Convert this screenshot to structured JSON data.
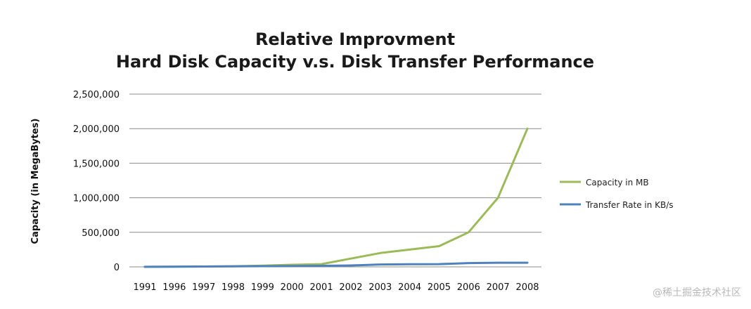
{
  "chart_data": {
    "type": "line",
    "title": "Relative Improvment",
    "subtitle": "Hard Disk Capacity v.s. Disk Transfer Performance",
    "xlabel": "",
    "ylabel": "Capacity (in MegaBytes)",
    "categories": [
      "1991",
      "1996",
      "1997",
      "1998",
      "1999",
      "2000",
      "2001",
      "2002",
      "2003",
      "2004",
      "2005",
      "2006",
      "2007",
      "2008"
    ],
    "ylim": [
      0,
      2500000
    ],
    "yticks": [
      0,
      500000,
      1000000,
      1500000,
      2000000,
      2500000
    ],
    "ytick_labels": [
      "0",
      "500,000",
      "1,000,000",
      "1,500,000",
      "2,000,000",
      "2,500,000"
    ],
    "grid": true,
    "legend": "right",
    "series": [
      {
        "name": "Capacity in MB",
        "color": "#9bbb59",
        "values": [
          100,
          2000,
          5000,
          9000,
          18000,
          30000,
          40000,
          120000,
          200000,
          250000,
          300000,
          500000,
          1000000,
          2000000
        ]
      },
      {
        "name": "Transfer Rate in KB/s",
        "color": "#4f81bd",
        "values": [
          1000,
          3000,
          5000,
          8000,
          10000,
          12000,
          15000,
          20000,
          35000,
          38000,
          40000,
          55000,
          60000,
          60000
        ]
      }
    ]
  },
  "watermark": "@稀土掘金技术社区"
}
